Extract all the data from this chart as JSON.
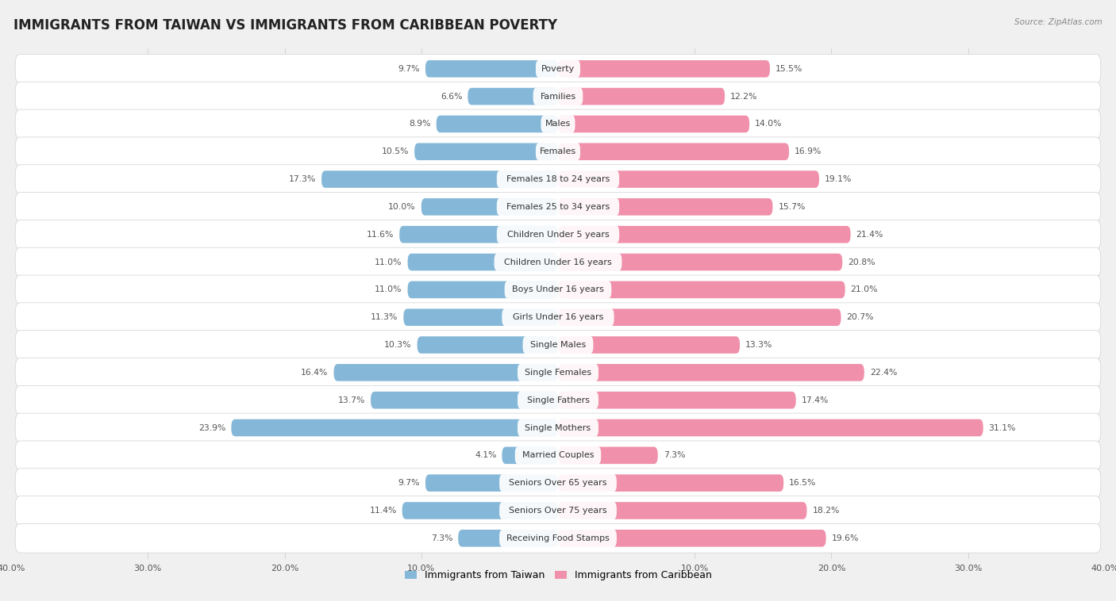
{
  "title": "IMMIGRANTS FROM TAIWAN VS IMMIGRANTS FROM CARIBBEAN POVERTY",
  "source": "Source: ZipAtlas.com",
  "categories": [
    "Poverty",
    "Families",
    "Males",
    "Females",
    "Females 18 to 24 years",
    "Females 25 to 34 years",
    "Children Under 5 years",
    "Children Under 16 years",
    "Boys Under 16 years",
    "Girls Under 16 years",
    "Single Males",
    "Single Females",
    "Single Fathers",
    "Single Mothers",
    "Married Couples",
    "Seniors Over 65 years",
    "Seniors Over 75 years",
    "Receiving Food Stamps"
  ],
  "taiwan_values": [
    9.7,
    6.6,
    8.9,
    10.5,
    17.3,
    10.0,
    11.6,
    11.0,
    11.0,
    11.3,
    10.3,
    16.4,
    13.7,
    23.9,
    4.1,
    9.7,
    11.4,
    7.3
  ],
  "caribbean_values": [
    15.5,
    12.2,
    14.0,
    16.9,
    19.1,
    15.7,
    21.4,
    20.8,
    21.0,
    20.7,
    13.3,
    22.4,
    17.4,
    31.1,
    7.3,
    16.5,
    18.2,
    19.6
  ],
  "taiwan_color": "#85b8d8",
  "caribbean_color": "#f090aa",
  "row_bg_color": "#e8e8e8",
  "background_color": "#f0f0f0",
  "axis_max": 40.0,
  "bar_height": 0.62,
  "legend_taiwan": "Immigrants from Taiwan",
  "legend_caribbean": "Immigrants from Caribbean",
  "title_fontsize": 12,
  "label_fontsize": 8.0,
  "value_fontsize": 7.8
}
